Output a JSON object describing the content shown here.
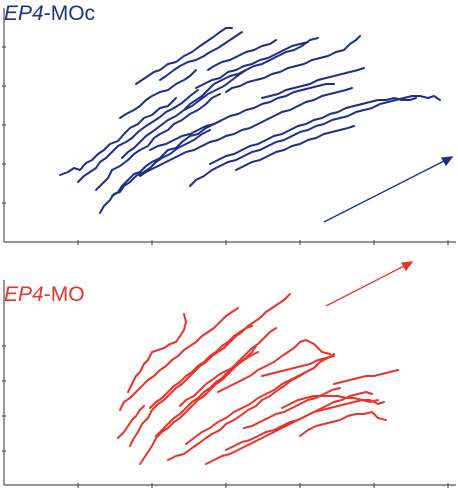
{
  "panels": [
    {
      "title_italic": "EP4",
      "title_rest": "-MOc",
      "color": "#1f2f85"
    },
    {
      "title_italic": "EP4",
      "title_rest": "-MO",
      "color": "#e8342b"
    }
  ],
  "colors": {
    "axis": "#555555"
  }
}
